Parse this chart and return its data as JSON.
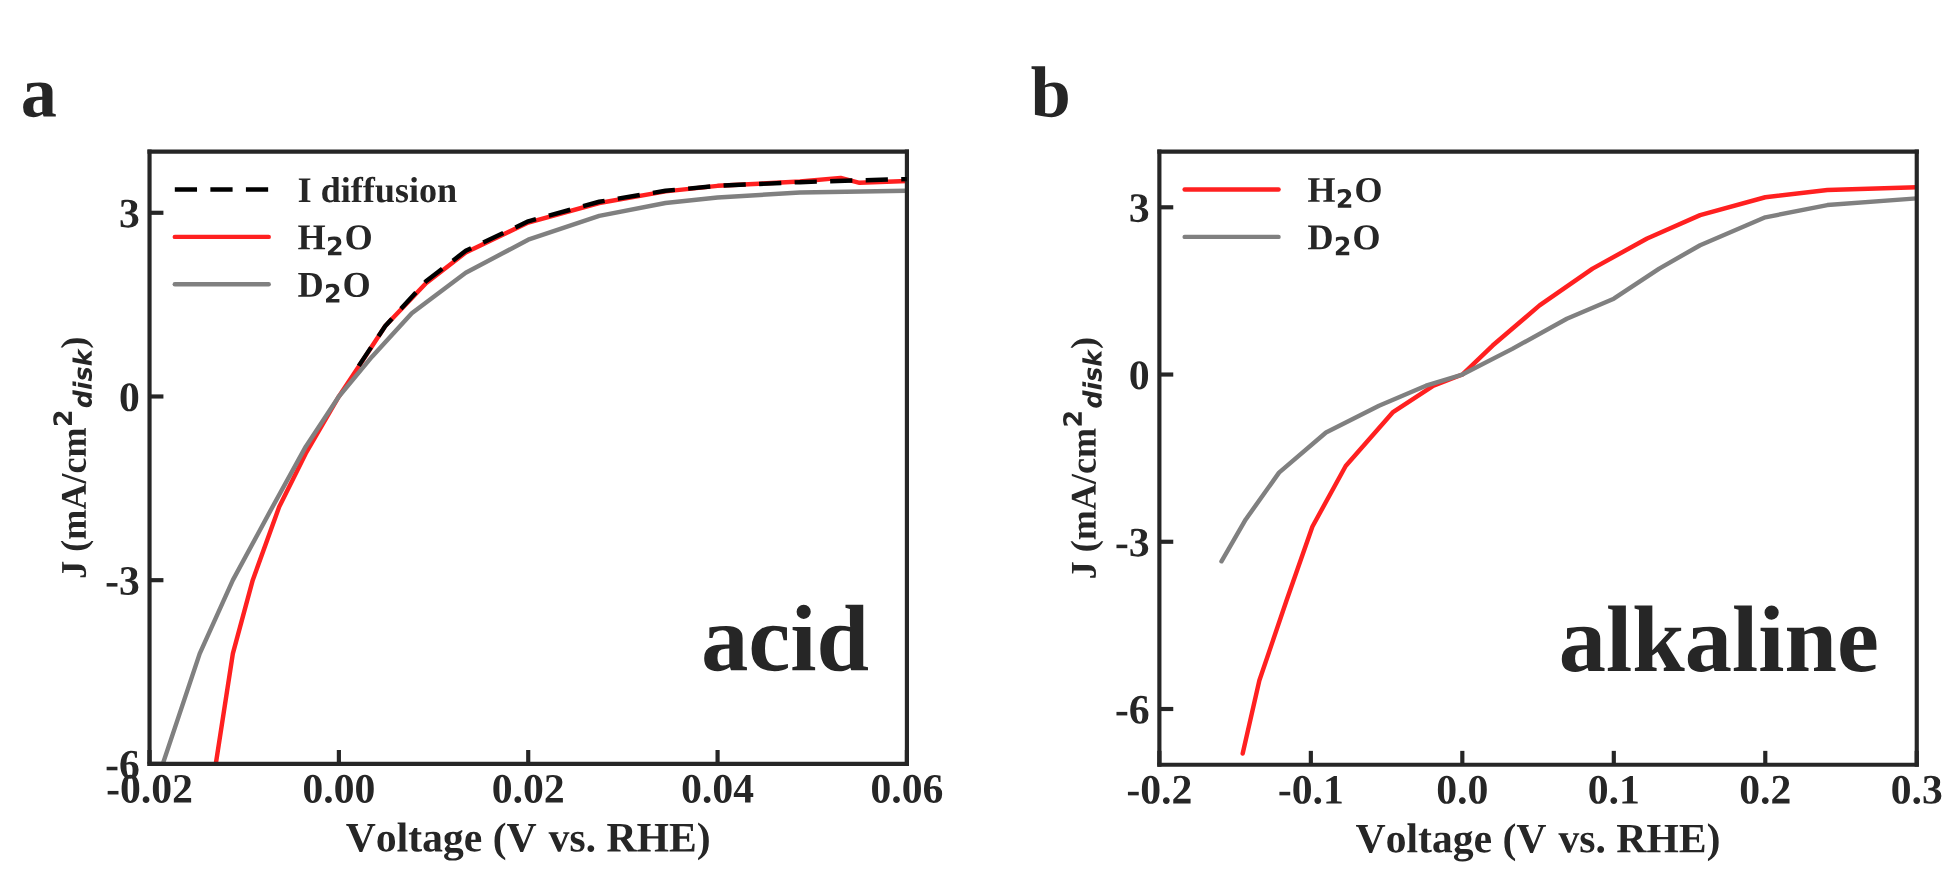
{
  "chart_data": [
    {
      "type": "line",
      "title": "a",
      "xlabel": "Voltage (V $_{}$vs. RHE)",
      "ylabel": "J (mA/cm$^{2}$$_{disk}$)",
      "xlim": [
        -0.02,
        0.06
      ],
      "ylim": [
        -6,
        4
      ],
      "xticks": [
        {
          "value": -0.02,
          "label": "-0.02"
        },
        {
          "value": 0.0,
          "label": "0.00"
        },
        {
          "value": 0.02,
          "label": "0.02"
        },
        {
          "value": 0.04,
          "label": "0.04"
        },
        {
          "value": 0.06,
          "label": "0.06"
        }
      ],
      "yticks": [
        -6,
        -3,
        0,
        3
      ],
      "legend": "top left",
      "grid": false,
      "annotations": [
        "acid"
      ],
      "series": [
        {
          "name": "I diffusion",
          "color": "#000000",
          "line_style": "dashed",
          "x": [
            0.0021,
            0.0049,
            0.0092,
            0.0134,
            0.02,
            0.0275,
            0.0345,
            0.04,
            0.0487,
            0.055,
            0.06
          ],
          "values": [
            0.5,
            1.15,
            1.88,
            2.38,
            2.86,
            3.18,
            3.36,
            3.44,
            3.5,
            3.53,
            3.55
          ]
        },
        {
          "name": "H$_{2}$O",
          "color": "#ff2020",
          "line_style": "solid",
          "x": [
            -0.013,
            -0.0112,
            -0.0091,
            -0.0063,
            -0.0035,
            0.0,
            0.0021,
            0.0049,
            0.0092,
            0.0134,
            0.02,
            0.0275,
            0.0345,
            0.04,
            0.0487,
            0.053,
            0.055,
            0.06
          ],
          "values": [
            -6.0,
            -4.2,
            -3.0,
            -1.8,
            -0.93,
            0.0,
            0.49,
            1.15,
            1.85,
            2.35,
            2.84,
            3.16,
            3.35,
            3.44,
            3.51,
            3.57,
            3.49,
            3.52
          ]
        },
        {
          "name": "D$_{2}$O",
          "color": "#808080",
          "line_style": "solid",
          "x": [
            -0.0186,
            -0.0147,
            -0.0112,
            -0.007,
            -0.0035,
            0.0,
            0.0035,
            0.0077,
            0.0134,
            0.02,
            0.0275,
            0.0345,
            0.04,
            0.0487,
            0.06
          ],
          "values": [
            -6.0,
            -4.2,
            -3.0,
            -1.8,
            -0.82,
            0.0,
            0.65,
            1.36,
            2.02,
            2.56,
            2.95,
            3.16,
            3.25,
            3.33,
            3.36
          ]
        }
      ]
    },
    {
      "type": "line",
      "title": "b",
      "xlabel": "Voltage (V $_{}$vs. RHE)",
      "ylabel": "J (mA/cm$^{2}$$_{disk}$)",
      "xlim": [
        -0.2,
        0.3
      ],
      "ylim": [
        -7,
        4
      ],
      "xticks": [
        -0.2,
        -0.1,
        {
          "value": 0.0,
          "label": "0.0"
        },
        0.1,
        0.2,
        0.3
      ],
      "yticks": [
        -6,
        -3,
        0,
        3
      ],
      "legend": "top left",
      "grid": false,
      "annotations": [
        "alkaline"
      ],
      "series": [
        {
          "name": "H$_{2}$O",
          "color": "#ff2020",
          "line_style": "solid",
          "x": [
            -0.145,
            -0.134,
            -0.116,
            -0.099,
            -0.077,
            -0.046,
            -0.019,
            0.0,
            0.02,
            0.051,
            0.086,
            0.122,
            0.157,
            0.2,
            0.241,
            0.3
          ],
          "values": [
            -6.8,
            -5.49,
            -4.05,
            -2.73,
            -1.64,
            -0.68,
            -0.2,
            0.0,
            0.52,
            1.24,
            1.9,
            2.44,
            2.86,
            3.18,
            3.31,
            3.36
          ]
        },
        {
          "name": "D$_{2}$O",
          "color": "#808080",
          "line_style": "solid",
          "x": [
            -0.159,
            -0.143,
            -0.121,
            -0.09,
            -0.055,
            -0.024,
            0.0,
            0.033,
            0.069,
            0.1,
            0.13,
            0.157,
            0.2,
            0.241,
            0.3
          ],
          "values": [
            -3.35,
            -2.6,
            -1.76,
            -1.04,
            -0.56,
            -0.2,
            0.0,
            0.46,
            1.0,
            1.36,
            1.9,
            2.32,
            2.82,
            3.04,
            3.16
          ]
        }
      ]
    }
  ]
}
